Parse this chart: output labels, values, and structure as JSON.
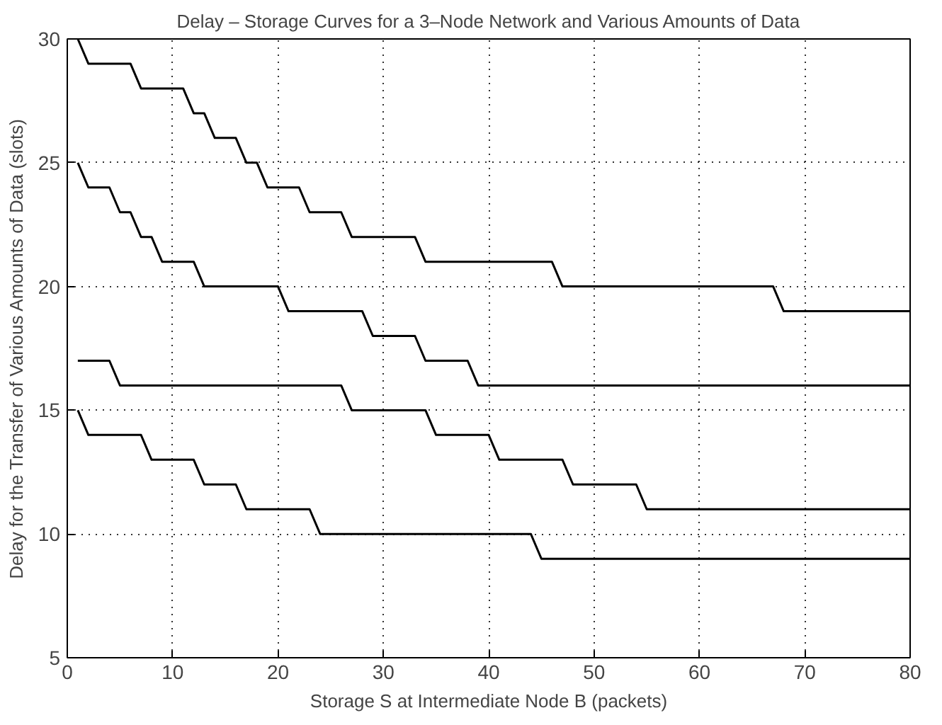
{
  "chart_data": {
    "type": "line",
    "title": "Delay – Storage Curves for a 3–Node Network and Various Amounts of Data",
    "xlabel": "Storage S at Intermediate Node B (packets)",
    "ylabel": "Delay for the Transfer of Various Amounts of Data (slots)",
    "xlim": [
      0,
      80
    ],
    "ylim": [
      5,
      30
    ],
    "xticks": [
      0,
      10,
      20,
      30,
      40,
      50,
      60,
      70,
      80
    ],
    "yticks": [
      5,
      10,
      15,
      20,
      25,
      30
    ],
    "grid": true,
    "marker": "none",
    "line_style": "solid",
    "series": [
      {
        "color": "#000000",
        "x": [
          1,
          2,
          6,
          7,
          11,
          12,
          13,
          14,
          16,
          17,
          18,
          19,
          22,
          23,
          26,
          27,
          33,
          34,
          46,
          47,
          67,
          68,
          80
        ],
        "values": [
          30,
          29,
          29,
          28,
          28,
          27,
          27,
          26,
          26,
          25,
          25,
          24,
          24,
          23,
          23,
          22,
          22,
          21,
          21,
          20,
          20,
          19,
          19
        ]
      },
      {
        "color": "#000000",
        "x": [
          1,
          2,
          4,
          5,
          6,
          7,
          8,
          9,
          12,
          13,
          20,
          21,
          28,
          29,
          33,
          34,
          38,
          39,
          80
        ],
        "values": [
          25,
          24,
          24,
          23,
          23,
          22,
          22,
          21,
          21,
          20,
          20,
          19,
          19,
          18,
          18,
          17,
          17,
          16,
          16
        ]
      },
      {
        "color": "#000000",
        "x": [
          1,
          4,
          5,
          26,
          27,
          34,
          35,
          40,
          41,
          47,
          48,
          54,
          55,
          80
        ],
        "values": [
          17,
          17,
          16,
          16,
          15,
          15,
          14,
          14,
          13,
          13,
          12,
          12,
          11,
          11
        ]
      },
      {
        "color": "#000000",
        "x": [
          1,
          2,
          7,
          8,
          12,
          13,
          16,
          17,
          23,
          24,
          44,
          45,
          80
        ],
        "values": [
          15,
          14,
          14,
          13,
          13,
          12,
          12,
          11,
          11,
          10,
          10,
          9,
          9
        ]
      }
    ]
  }
}
